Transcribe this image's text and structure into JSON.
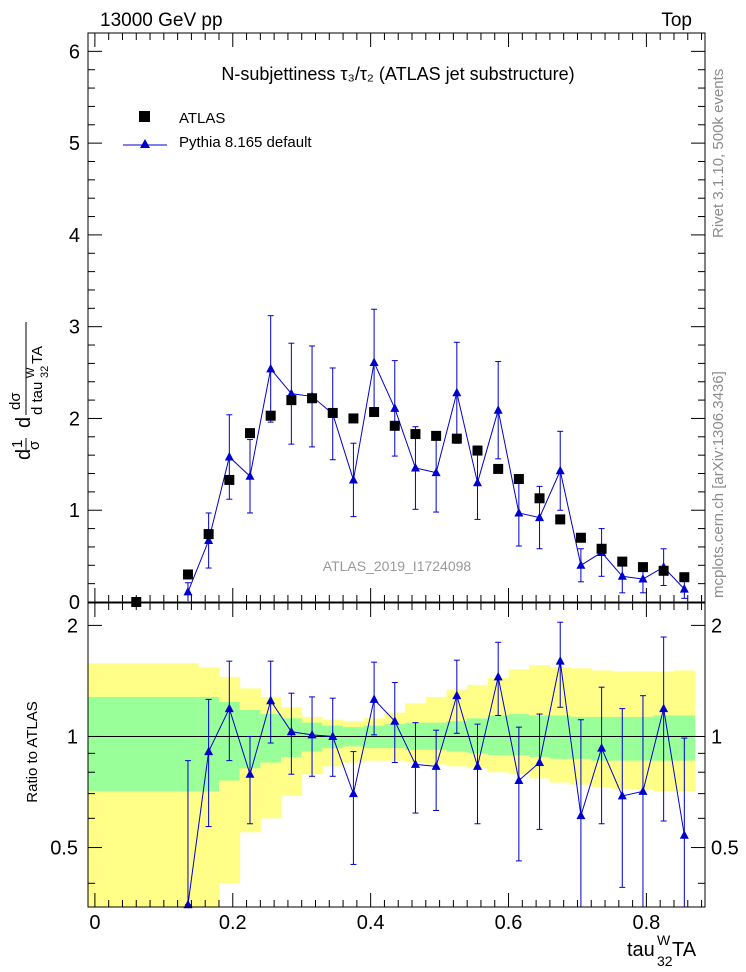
{
  "header": {
    "energy": "13000 GeV pp",
    "process": "Top"
  },
  "side": {
    "rivet": "Rivet 3.1.10,  500k events",
    "mcplots": "mcplots.cern.ch [arXiv:1306.3436]"
  },
  "watermark": "ATLAS_2019_I1724098",
  "colors": {
    "data": "#000000",
    "mc": "#0000cc",
    "band_inner": "#99ff99",
    "band_outer": "#ffff88"
  },
  "chart_data": [
    {
      "type": "scatter",
      "title": "N-subjettiness  τ₃/τ₂ (ATLAS jet substructure)",
      "xlabel": "tau32WTA",
      "ylabel": "1/σ dσ/d tau32WTA",
      "xlim": [
        -0.01,
        0.885
      ],
      "ylim": [
        0,
        6.2
      ],
      "yticks": [
        0,
        1,
        2,
        3,
        4,
        5,
        6
      ],
      "legend": [
        "ATLAS",
        "Pythia 8.165 default"
      ],
      "x": [
        0.06,
        0.135,
        0.165,
        0.195,
        0.225,
        0.255,
        0.285,
        0.315,
        0.345,
        0.375,
        0.405,
        0.435,
        0.465,
        0.495,
        0.525,
        0.555,
        0.585,
        0.615,
        0.645,
        0.675,
        0.705,
        0.735,
        0.765,
        0.795,
        0.825,
        0.855
      ],
      "series": [
        {
          "name": "ATLAS",
          "values": [
            0.0,
            0.3,
            0.74,
            1.33,
            1.84,
            2.03,
            2.2,
            2.22,
            2.06,
            2.0,
            2.07,
            1.92,
            1.83,
            1.81,
            1.78,
            1.65,
            1.45,
            1.34,
            1.13,
            0.9,
            0.7,
            0.58,
            0.44,
            0.38,
            0.34,
            0.27
          ]
        },
        {
          "name": "Pythia 8.165 default",
          "x": [
            0.135,
            0.165,
            0.195,
            0.225,
            0.255,
            0.285,
            0.315,
            0.345,
            0.375,
            0.405,
            0.435,
            0.465,
            0.495,
            0.525,
            0.555,
            0.585,
            0.615,
            0.645,
            0.675,
            0.705,
            0.735,
            0.765,
            0.795,
            0.825,
            0.855
          ],
          "values": [
            0.11,
            0.67,
            1.58,
            1.37,
            2.54,
            2.27,
            2.24,
            2.05,
            1.33,
            2.61,
            2.11,
            1.46,
            1.41,
            2.28,
            1.3,
            2.09,
            0.97,
            0.92,
            1.43,
            0.4,
            0.54,
            0.28,
            0.25,
            0.38,
            0.14
          ],
          "err": [
            0.1,
            0.3,
            0.46,
            0.4,
            0.58,
            0.55,
            0.55,
            0.5,
            0.4,
            0.58,
            0.52,
            0.45,
            0.43,
            0.55,
            0.4,
            0.53,
            0.36,
            0.34,
            0.43,
            0.18,
            0.26,
            0.18,
            0.15,
            0.2,
            0.1
          ]
        }
      ]
    },
    {
      "type": "scatter",
      "title": "",
      "xlabel": "tau32WTA",
      "ylabel": "Ratio to ATLAS",
      "xlim": [
        -0.01,
        0.885
      ],
      "ylim": [
        0.345,
        2.3
      ],
      "yticks": [
        0.5,
        1,
        2
      ],
      "xticks": [
        0,
        0.2,
        0.4,
        0.6,
        0.8
      ],
      "x": [
        0.135,
        0.165,
        0.195,
        0.225,
        0.255,
        0.285,
        0.315,
        0.345,
        0.375,
        0.405,
        0.435,
        0.465,
        0.495,
        0.525,
        0.555,
        0.585,
        0.615,
        0.645,
        0.675,
        0.705,
        0.735,
        0.765,
        0.795,
        0.825,
        0.855
      ],
      "series": [
        {
          "name": "Pythia 8.165 default ratio",
          "values": [
            0.35,
            0.91,
            1.19,
            0.79,
            1.25,
            1.03,
            1.01,
            1.0,
            0.7,
            1.26,
            1.1,
            0.84,
            0.83,
            1.29,
            0.83,
            1.45,
            0.76,
            0.85,
            1.6,
            0.61,
            0.93,
            0.69,
            0.71,
            1.19,
            0.54
          ],
          "err_up": [
            0.51,
            0.35,
            0.41,
            0.21,
            0.35,
            0.28,
            0.27,
            0.27,
            0.21,
            0.33,
            0.3,
            0.25,
            0.21,
            0.32,
            0.25,
            0.35,
            0.3,
            0.3,
            0.44,
            0.5,
            0.43,
            0.5,
            0.58,
            0.67,
            0.45
          ],
          "err_down": [
            0.0,
            0.34,
            0.33,
            0.21,
            0.29,
            0.24,
            0.23,
            0.22,
            0.25,
            0.25,
            0.25,
            0.22,
            0.2,
            0.27,
            0.25,
            0.31,
            0.3,
            0.29,
            0.4,
            0.3,
            0.35,
            0.3,
            0.37,
            0.6,
            0.2
          ]
        },
        {
          "name": "ATLAS band",
          "band_x": [
            -0.01,
            0.12,
            0.15,
            0.18,
            0.21,
            0.24,
            0.27,
            0.3,
            0.33,
            0.36,
            0.39,
            0.42,
            0.45,
            0.48,
            0.51,
            0.54,
            0.57,
            0.6,
            0.63,
            0.66,
            0.69,
            0.72,
            0.75,
            0.78,
            0.81,
            0.84,
            0.87
          ],
          "inner_low": [
            0.71,
            0.71,
            0.71,
            0.76,
            0.82,
            0.85,
            0.88,
            0.91,
            0.93,
            0.94,
            0.93,
            0.93,
            0.92,
            0.92,
            0.91,
            0.9,
            0.89,
            0.89,
            0.88,
            0.87,
            0.87,
            0.86,
            0.86,
            0.86,
            0.86,
            0.86
          ],
          "inner_high": [
            1.28,
            1.28,
            1.28,
            1.24,
            1.18,
            1.15,
            1.12,
            1.09,
            1.07,
            1.06,
            1.07,
            1.08,
            1.09,
            1.09,
            1.1,
            1.12,
            1.14,
            1.15,
            1.14,
            1.14,
            1.13,
            1.13,
            1.13,
            1.13,
            1.14,
            1.14
          ],
          "outer_low": [
            0.33,
            0.33,
            0.33,
            0.4,
            0.55,
            0.6,
            0.69,
            0.79,
            0.83,
            0.85,
            0.86,
            0.86,
            0.85,
            0.84,
            0.83,
            0.82,
            0.8,
            0.79,
            0.77,
            0.75,
            0.74,
            0.73,
            0.72,
            0.72,
            0.71,
            0.71
          ],
          "outer_high": [
            1.58,
            1.58,
            1.54,
            1.45,
            1.35,
            1.28,
            1.2,
            1.13,
            1.11,
            1.1,
            1.12,
            1.16,
            1.23,
            1.28,
            1.34,
            1.38,
            1.44,
            1.52,
            1.56,
            1.54,
            1.53,
            1.51,
            1.5,
            1.5,
            1.5,
            1.51
          ]
        }
      ]
    }
  ]
}
